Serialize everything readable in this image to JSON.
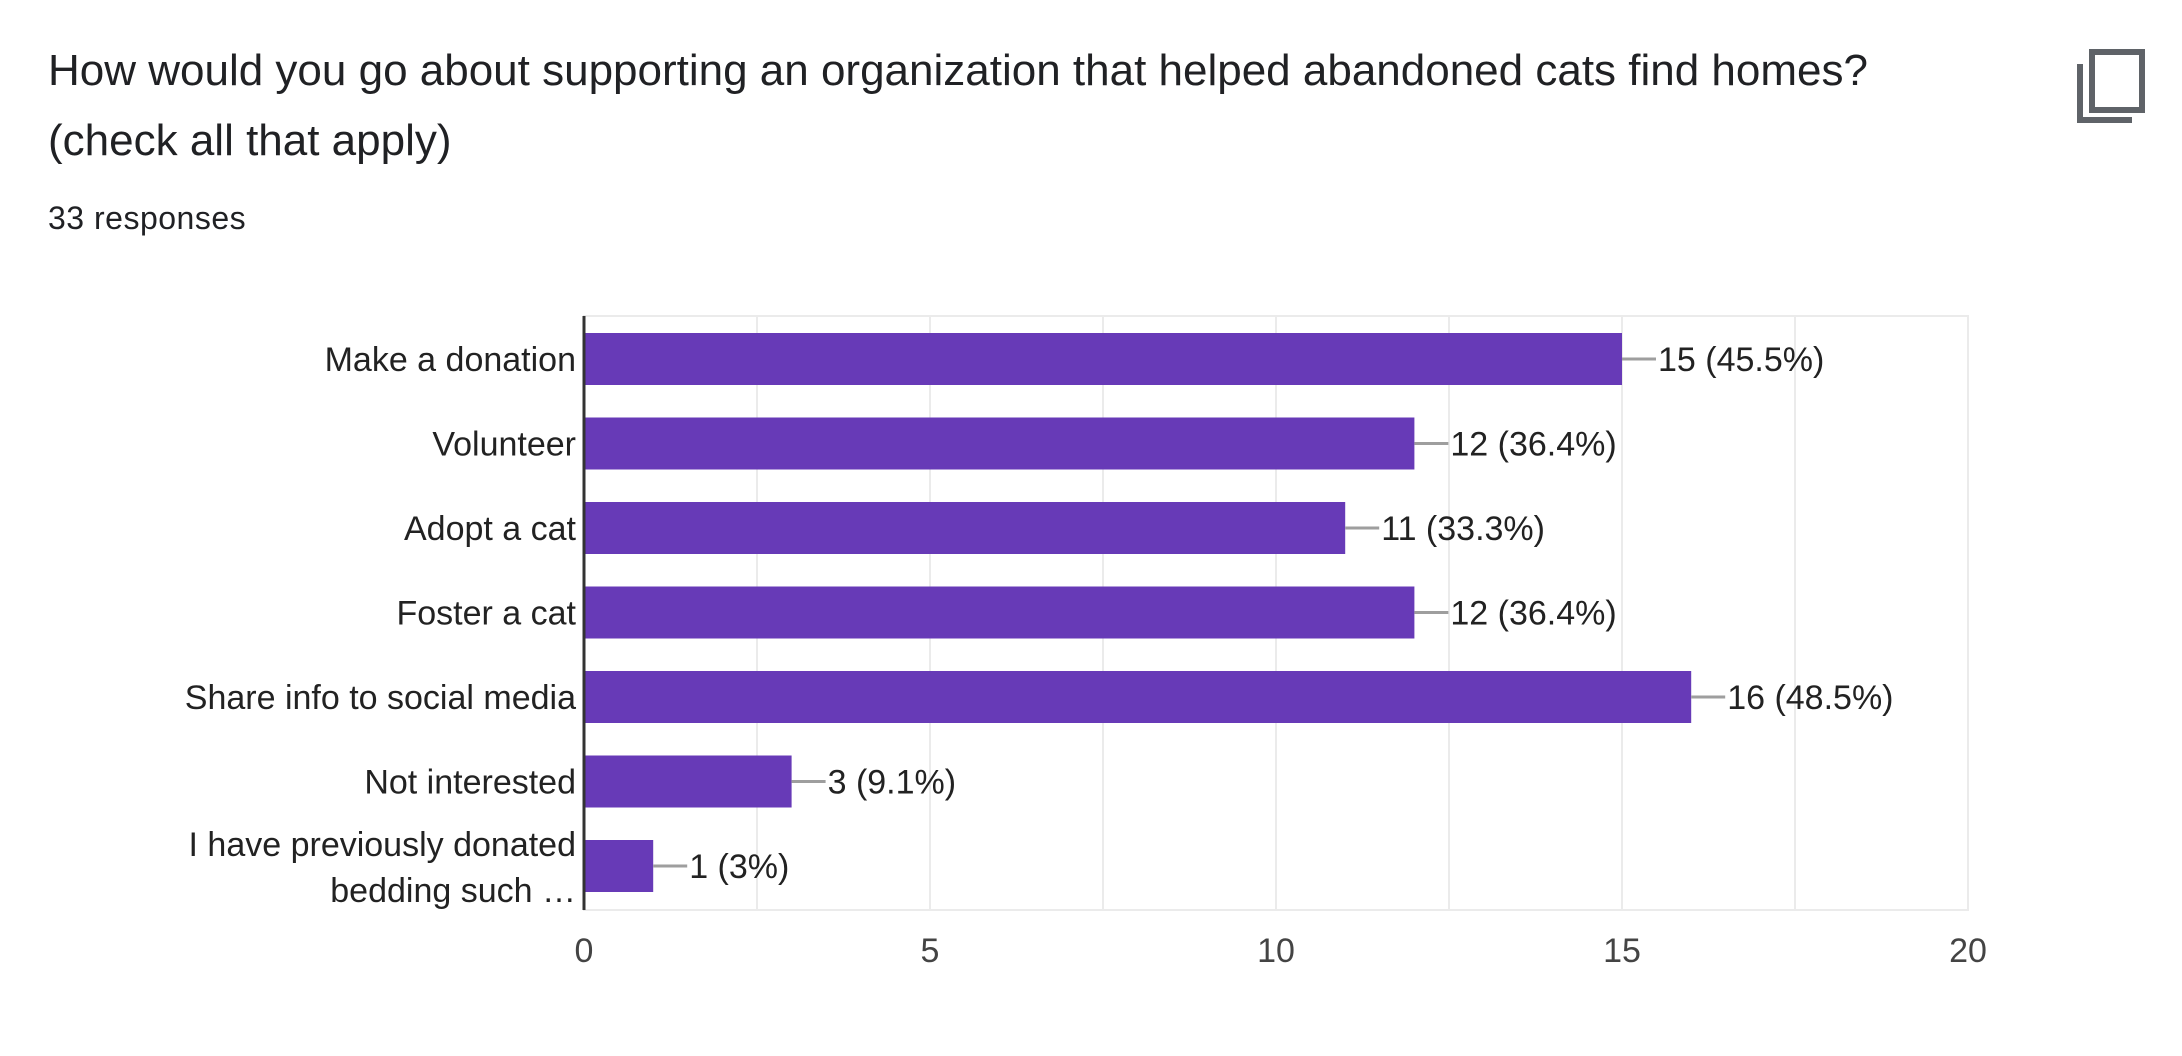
{
  "question": {
    "title": "How would you go about supporting an organization that helped abandoned cats find homes? (check all that apply)",
    "responses": "33 responses"
  },
  "icons": {
    "copy": "copy-icon"
  },
  "colors": {
    "bar": "#673ab7",
    "grid": "#ebebeb",
    "axis": "#333333",
    "leader": "#9e9e9e",
    "text": "#222222"
  },
  "chart_data": {
    "type": "bar",
    "orientation": "horizontal",
    "categories": [
      "Make a donation",
      "Volunteer",
      "Adopt a cat",
      "Foster a cat",
      "Share info to social media",
      "Not interested",
      "I have previously donated bedding such …"
    ],
    "category_label_lines": [
      [
        "Make a donation"
      ],
      [
        "Volunteer"
      ],
      [
        "Adopt a cat"
      ],
      [
        "Foster a cat"
      ],
      [
        "Share info to social media"
      ],
      [
        "Not interested"
      ],
      [
        "I have previously donated",
        "bedding such …"
      ]
    ],
    "values": [
      15,
      12,
      11,
      12,
      16,
      3,
      1
    ],
    "data_labels": [
      "15 (45.5%)",
      "12 (36.4%)",
      "11 (33.3%)",
      "12 (36.4%)",
      "16 (48.5%)",
      "3 (9.1%)",
      "1 (3%)"
    ],
    "xlim": [
      0,
      20
    ],
    "x_ticks": [
      0,
      5,
      10,
      15,
      20
    ],
    "grid": true,
    "title": "",
    "xlabel": "",
    "ylabel": ""
  }
}
